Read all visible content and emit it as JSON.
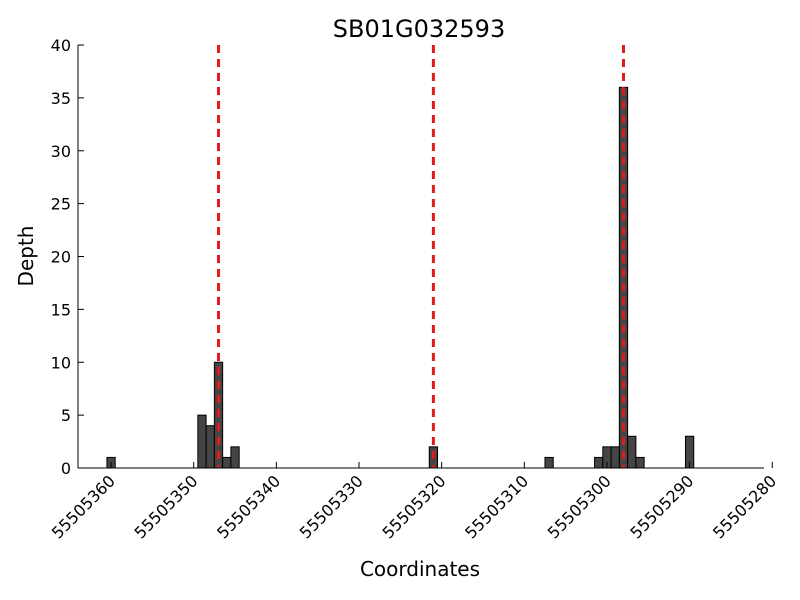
{
  "chart_data": {
    "type": "bar",
    "title": "SB01G032593",
    "xlabel": "Coordinates",
    "ylabel": "Depth",
    "x_reversed": true,
    "xlim": [
      55505364,
      55505281
    ],
    "ylim": [
      0,
      40
    ],
    "xticks": [
      55505360,
      55505350,
      55505340,
      55505330,
      55505320,
      55505310,
      55505300,
      55505290,
      55505280
    ],
    "yticks": [
      0,
      5,
      10,
      15,
      20,
      25,
      30,
      35,
      40
    ],
    "grid": false,
    "bar_color": "#454545",
    "line_color": "#e31a1c",
    "bars": [
      {
        "x": 55505360,
        "y": 1
      },
      {
        "x": 55505349,
        "y": 5
      },
      {
        "x": 55505348,
        "y": 4
      },
      {
        "x": 55505347,
        "y": 10
      },
      {
        "x": 55505346,
        "y": 1
      },
      {
        "x": 55505345,
        "y": 2
      },
      {
        "x": 55505321,
        "y": 2
      },
      {
        "x": 55505307,
        "y": 1
      },
      {
        "x": 55505301,
        "y": 1
      },
      {
        "x": 55505300,
        "y": 2
      },
      {
        "x": 55505299,
        "y": 2
      },
      {
        "x": 55505298,
        "y": 36
      },
      {
        "x": 55505297,
        "y": 3
      },
      {
        "x": 55505296,
        "y": 1
      },
      {
        "x": 55505290,
        "y": 3
      }
    ],
    "vlines": [
      55505347,
      55505321,
      55505298
    ]
  }
}
